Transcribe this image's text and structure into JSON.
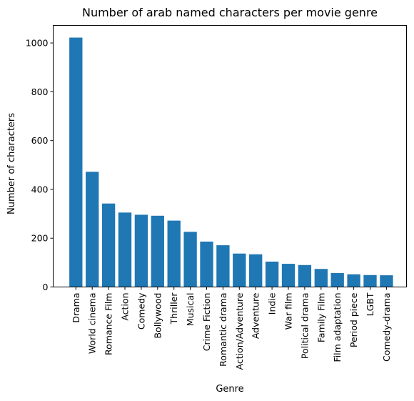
{
  "chart_data": {
    "type": "bar",
    "title": "Number of arab named characters per movie genre",
    "xlabel": "Genre",
    "ylabel": "Number of characters",
    "categories": [
      "Drama",
      "World cinema",
      "Romance Film",
      "Action",
      "Comedy",
      "Bollywood",
      "Thriller",
      "Musical",
      "Crime Fiction",
      "Romantic drama",
      "Action/Adventure",
      "Adventure",
      "Indie",
      "War film",
      "Political drama",
      "Family Film",
      "Film adaptation",
      "Period piece",
      "LGBT",
      "Comedy-drama"
    ],
    "values": [
      1022,
      472,
      342,
      305,
      296,
      292,
      272,
      226,
      186,
      171,
      137,
      134,
      104,
      95,
      90,
      74,
      57,
      52,
      49,
      48
    ],
    "ylim": [
      0,
      1072
    ],
    "yticks": [
      0,
      200,
      400,
      600,
      800,
      1000
    ],
    "bar_color": "#1f77b4",
    "grid": false,
    "legend": "none"
  }
}
